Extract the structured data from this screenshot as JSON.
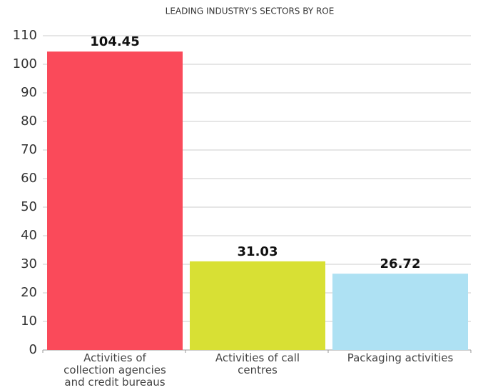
{
  "chart_data": {
    "type": "bar",
    "title": "LEADING INDUSTRY'S SECTORS BY ROE",
    "categories": [
      "Activities of collection agencies and credit bureaus",
      "Activities of call centres",
      "Packaging activities"
    ],
    "values": [
      104.45,
      31.03,
      26.72
    ],
    "colors": [
      "#fa4a5a",
      "#d8e034",
      "#aee1f3"
    ],
    "ylim": [
      0,
      110
    ],
    "yticks": [
      0,
      10,
      20,
      30,
      40,
      50,
      60,
      70,
      80,
      90,
      100,
      110
    ],
    "grid": true
  }
}
